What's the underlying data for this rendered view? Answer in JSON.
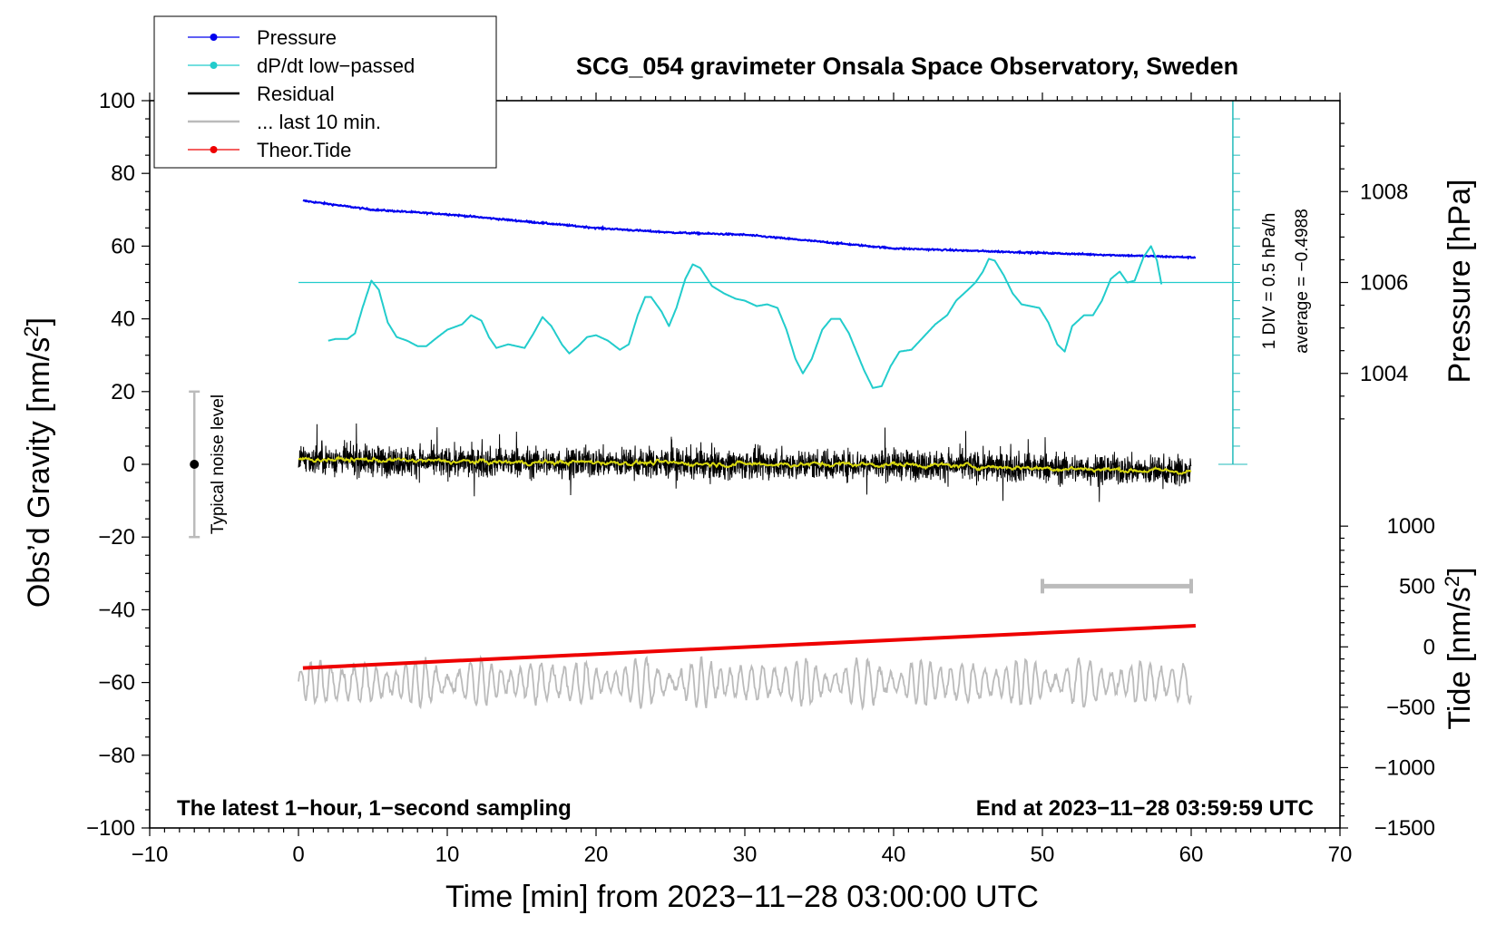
{
  "chart_data": {
    "type": "line",
    "title": "SCG_054 gravimeter Onsala Space Observatory, Sweden",
    "xlabel": "Time [min] from 2023−11−28 03:00:00 UTC",
    "ylabel_left": "Obs’d Gravity [nm/s",
    "ylabel_left_sup": "2",
    "ylabel_left_end": "]",
    "ylabel_right_pressure": "Pressure [hPa]",
    "ylabel_right_tide": "Tide [nm/s",
    "ylabel_right_tide_sup": "2",
    "ylabel_right_tide_end": "]",
    "xlim": [
      -10,
      70
    ],
    "ylim_gravity": [
      -100,
      100
    ],
    "x_ticks": [
      {
        "v": -10,
        "label": "−10"
      },
      {
        "v": 0,
        "label": "0"
      },
      {
        "v": 10,
        "label": "10"
      },
      {
        "v": 20,
        "label": "20"
      },
      {
        "v": 30,
        "label": "30"
      },
      {
        "v": 40,
        "label": "40"
      },
      {
        "v": 50,
        "label": "50"
      },
      {
        "v": 60,
        "label": "60"
      },
      {
        "v": 70,
        "label": "70"
      }
    ],
    "y_ticks_gravity": [
      {
        "v": 100,
        "label": "100"
      },
      {
        "v": 80,
        "label": "80"
      },
      {
        "v": 60,
        "label": "60"
      },
      {
        "v": 40,
        "label": "40"
      },
      {
        "v": 20,
        "label": "20"
      },
      {
        "v": 0,
        "label": "0"
      },
      {
        "v": -20,
        "label": "−20"
      },
      {
        "v": -40,
        "label": "−40"
      },
      {
        "v": -60,
        "label": "−60"
      },
      {
        "v": -80,
        "label": "−80"
      },
      {
        "v": -100,
        "label": "−100"
      }
    ],
    "pressure_axis": {
      "ref": {
        "p1": 1004,
        "g1": 25,
        "p2": 1008,
        "g2": 75
      },
      "ticks": [
        {
          "v": 1008,
          "label": "1008"
        },
        {
          "v": 1006,
          "label": "1006"
        },
        {
          "v": 1004,
          "label": "1004"
        }
      ]
    },
    "tide_axis": {
      "ref": {
        "t1": 1000,
        "g1": -17,
        "t2": -1500,
        "g2": -100
      },
      "ticks": [
        {
          "v": 1000,
          "label": "1000"
        },
        {
          "v": 500,
          "label": "500"
        },
        {
          "v": 0,
          "label": "0"
        },
        {
          "v": -500,
          "label": "−500"
        },
        {
          "v": -1000,
          "label": "−1000"
        },
        {
          "v": -1500,
          "label": "−1500"
        }
      ]
    },
    "dpdt_scale": {
      "label_div": "1 DIV = 0.5 hPa/h",
      "label_avg": "average = −0.4988",
      "bar_x": 62.8,
      "g_bottom": 0,
      "g_top": 100,
      "div_step_g": 5,
      "baseline_g": 50,
      "baseline_x": [
        0,
        63
      ]
    },
    "legend": [
      {
        "name": "Pressure",
        "color": "#0000ee",
        "marker": true
      },
      {
        "name": "dP/dt low−passed",
        "color": "#22cccc",
        "marker": true
      },
      {
        "name": "Residual",
        "color": "#000000",
        "marker": false
      },
      {
        "name": "... last 10 min.",
        "color": "#bbbbbb",
        "marker": false
      },
      {
        "name": "Theor.Tide",
        "color": "#ee0000",
        "marker": true
      }
    ],
    "series": [
      {
        "name": "Pressure",
        "color": "#0000ee",
        "unit": "hPa",
        "points": [
          [
            0.3,
            1007.8
          ],
          [
            5,
            1007.6
          ],
          [
            10,
            1007.5
          ],
          [
            15,
            1007.35
          ],
          [
            20,
            1007.2
          ],
          [
            25,
            1007.1
          ],
          [
            30,
            1007.05
          ],
          [
            35,
            1006.9
          ],
          [
            40,
            1006.75
          ],
          [
            45,
            1006.7
          ],
          [
            50,
            1006.65
          ],
          [
            55,
            1006.6
          ],
          [
            60.3,
            1006.55
          ]
        ]
      },
      {
        "name": "dP/dt low−passed",
        "color": "#22cccc",
        "unit": "nm/s2 (plot units)",
        "points": [
          [
            2,
            34
          ],
          [
            2.5,
            34.5
          ],
          [
            3.3,
            34.5
          ],
          [
            3.8,
            36
          ],
          [
            4.3,
            43
          ],
          [
            4.9,
            50.5
          ],
          [
            5.4,
            48
          ],
          [
            6.0,
            39
          ],
          [
            6.6,
            35
          ],
          [
            7.3,
            34
          ],
          [
            8.0,
            32.5
          ],
          [
            8.6,
            32.5
          ],
          [
            9.2,
            34.5
          ],
          [
            10,
            37
          ],
          [
            11,
            38.5
          ],
          [
            11.6,
            41
          ],
          [
            12.3,
            39.5
          ],
          [
            12.8,
            35
          ],
          [
            13.3,
            32
          ],
          [
            14.1,
            33
          ],
          [
            15.2,
            32
          ],
          [
            15.8,
            36
          ],
          [
            16.4,
            40.5
          ],
          [
            17.0,
            38
          ],
          [
            17.7,
            33
          ],
          [
            18.2,
            30.5
          ],
          [
            18.8,
            32.5
          ],
          [
            19.4,
            35
          ],
          [
            20.0,
            35.5
          ],
          [
            20.8,
            34
          ],
          [
            21.6,
            31.5
          ],
          [
            22.2,
            33
          ],
          [
            22.8,
            41
          ],
          [
            23.3,
            46
          ],
          [
            23.7,
            46
          ],
          [
            24.4,
            42
          ],
          [
            24.9,
            38
          ],
          [
            25.4,
            43
          ],
          [
            26.0,
            51
          ],
          [
            26.5,
            55
          ],
          [
            27.0,
            54
          ],
          [
            27.8,
            49
          ],
          [
            28.6,
            47
          ],
          [
            29.4,
            45.5
          ],
          [
            30.0,
            45
          ],
          [
            30.8,
            43.5
          ],
          [
            31.5,
            44
          ],
          [
            32.2,
            43
          ],
          [
            32.8,
            37
          ],
          [
            33.4,
            29
          ],
          [
            33.9,
            25
          ],
          [
            34.5,
            29
          ],
          [
            35.2,
            37
          ],
          [
            35.8,
            40
          ],
          [
            36.4,
            40
          ],
          [
            37.0,
            36
          ],
          [
            37.5,
            31
          ],
          [
            38.0,
            26
          ],
          [
            38.6,
            21
          ],
          [
            39.2,
            21.5
          ],
          [
            39.8,
            27
          ],
          [
            40.4,
            31
          ],
          [
            41.2,
            31.5
          ],
          [
            42,
            35
          ],
          [
            42.8,
            38.5
          ],
          [
            43.6,
            41
          ],
          [
            44.2,
            45
          ],
          [
            45.0,
            48
          ],
          [
            45.5,
            50
          ],
          [
            46.0,
            53
          ],
          [
            46.4,
            56.5
          ],
          [
            46.8,
            56
          ],
          [
            47.4,
            52
          ],
          [
            48.0,
            47
          ],
          [
            48.6,
            44
          ],
          [
            49.2,
            43.5
          ],
          [
            49.8,
            43
          ],
          [
            50.4,
            39
          ],
          [
            51.0,
            33
          ],
          [
            51.5,
            31
          ],
          [
            52.0,
            38
          ],
          [
            52.8,
            41
          ],
          [
            53.4,
            41
          ],
          [
            54.0,
            45
          ],
          [
            54.6,
            51
          ],
          [
            55.2,
            53
          ],
          [
            55.7,
            50
          ],
          [
            56.2,
            50.5
          ],
          [
            56.8,
            57
          ],
          [
            57.3,
            60
          ],
          [
            57.7,
            56
          ],
          [
            58.0,
            49.5
          ]
        ]
      },
      {
        "name": "Residual",
        "color": "#000000",
        "unit": "nm/s2",
        "x_range": [
          0,
          60
        ],
        "amplitude": "approx ±6 nm/s2 (extremes ±12)",
        "trend": [
          [
            0,
            1.5
          ],
          [
            10,
            0.5
          ],
          [
            20,
            0.5
          ],
          [
            30,
            0
          ],
          [
            40,
            0
          ],
          [
            50,
            -1
          ],
          [
            60,
            -2
          ]
        ]
      },
      {
        "name": "Residual low−passed",
        "color": "#d8d810",
        "unit": "nm/s2",
        "points": [
          [
            0,
            1.5
          ],
          [
            5,
            1.2
          ],
          [
            10,
            0.8
          ],
          [
            15,
            0.5
          ],
          [
            20,
            0.6
          ],
          [
            25,
            0.3
          ],
          [
            30,
            0.1
          ],
          [
            35,
            0
          ],
          [
            40,
            0
          ],
          [
            45,
            -0.5
          ],
          [
            50,
            -1
          ],
          [
            55,
            -1.5
          ],
          [
            60,
            -2
          ]
        ]
      },
      {
        "name": "... last 10 min.",
        "color": "#bbbbbb",
        "unit": "nm/s2 (plot units)",
        "x_range": [
          0,
          60
        ],
        "center": -60,
        "amplitude": "approx ±7 nm/s2"
      },
      {
        "name": "Theor.Tide",
        "color": "#ee0000",
        "unit": "nm/s2 (tide axis)",
        "points": [
          [
            0.3,
            -175
          ],
          [
            60.3,
            175
          ]
        ]
      }
    ],
    "annotations": {
      "window_bar": {
        "x": [
          50,
          60
        ],
        "g": -33.5
      },
      "noise_level": {
        "label": "Typical noise level",
        "x": -7,
        "center": 0,
        "range": [
          -20,
          20
        ]
      },
      "bottom_left": "The latest 1−hour, 1−second sampling",
      "bottom_right": "End at 2023−11−28 03:59:59 UTC"
    }
  }
}
